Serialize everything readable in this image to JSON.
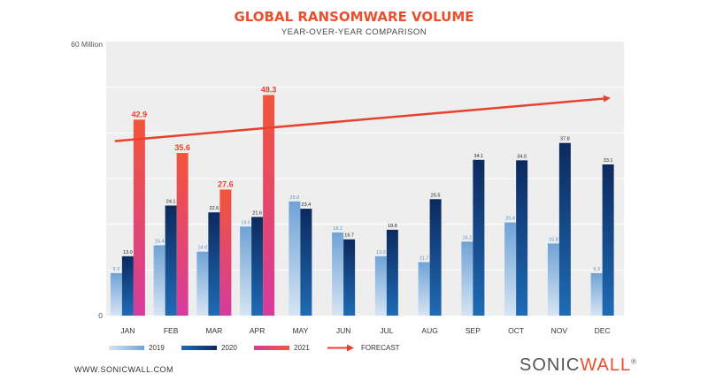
{
  "chart_data": {
    "type": "bar",
    "title": "GLOBAL RANSOMWARE VOLUME",
    "subtitle": "YEAR-OVER-YEAR COMPARISON",
    "y_top_label": "60 Million",
    "y_bottom_label": "0",
    "ylim": [
      0,
      60
    ],
    "grid": true,
    "legend_position": "bottom",
    "categories": [
      "JAN",
      "FEB",
      "MAR",
      "APR",
      "MAY",
      "JUN",
      "JUL",
      "AUG",
      "SEP",
      "OCT",
      "NOV",
      "DEC"
    ],
    "series": [
      {
        "name": "2019",
        "color": "#8fb7dd",
        "values": [
          9.3,
          15.4,
          14.0,
          19.5,
          25.0,
          18.2,
          13.0,
          11.7,
          16.2,
          20.4,
          15.8,
          9.3
        ]
      },
      {
        "name": "2020",
        "color": "#123a75",
        "values": [
          13.0,
          24.1,
          22.6,
          21.6,
          23.4,
          16.7,
          18.8,
          25.5,
          34.1,
          34.0,
          37.8,
          33.1
        ]
      },
      {
        "name": "2021",
        "color": "#ee3e3a",
        "values": [
          42.9,
          35.6,
          27.6,
          48.3,
          null,
          null,
          null,
          null,
          null,
          null,
          null,
          null
        ]
      }
    ],
    "forecast": {
      "label": "FORECAST",
      "color": "#e8412c",
      "start": 38.2,
      "end": 47.6
    }
  },
  "footer": {
    "url": "WWW.SONICWALL.COM",
    "logo_a": "SONIC",
    "logo_b": "WALL",
    "logo_mark": "®"
  }
}
